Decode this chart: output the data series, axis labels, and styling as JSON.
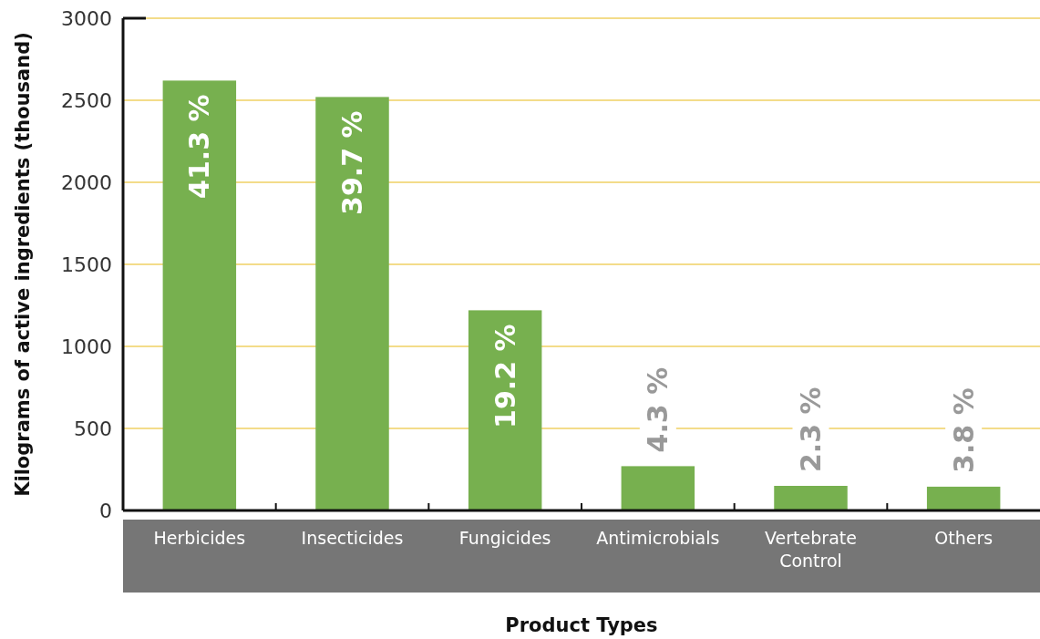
{
  "chart_data": {
    "type": "bar",
    "xlabel": "Product Types",
    "ylabel": "Kilograms of active ingredients (thousand)",
    "categories": [
      "Herbicides",
      "Insecticides",
      "Fungicides",
      "Antimicrobials",
      "Vertebrate Control",
      "Others"
    ],
    "values": [
      2620,
      2520,
      1220,
      270,
      150,
      145
    ],
    "annotations": [
      {
        "text": "41.3 %",
        "x": "Herbicides",
        "y": 2620
      },
      {
        "text": "39.7 %",
        "x": "Insecticides",
        "y": 2520
      },
      {
        "text": "19.2 %",
        "x": "Fungicides",
        "y": 1220
      },
      {
        "text": "4.3 %",
        "x": "Antimicrobials",
        "y": 270
      },
      {
        "text": "2.3 %",
        "x": "Vertebrate Control",
        "y": 150
      },
      {
        "text": "3.8 %",
        "x": "Others",
        "y": 145
      }
    ],
    "color": "#77b04f",
    "ylim": [
      0,
      3000
    ],
    "yticks": [
      0,
      500,
      1000,
      1500,
      2000,
      2500,
      3000
    ],
    "grid": "y"
  }
}
